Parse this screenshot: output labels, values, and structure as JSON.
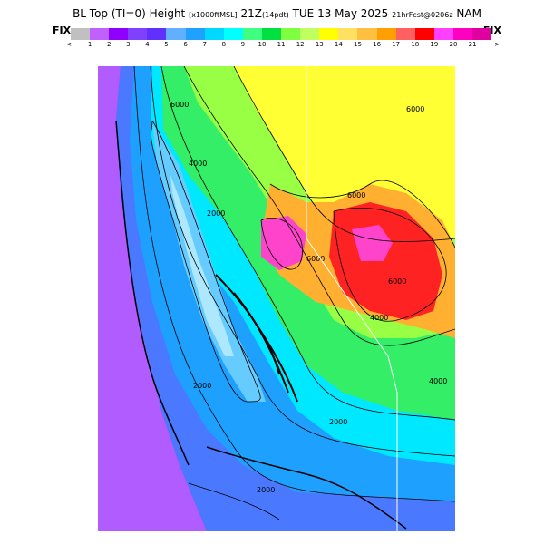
{
  "header": {
    "product": "BL Top (TI=0) Height",
    "units": "[x1000ftMSL]",
    "valid_time": "21Z",
    "local_time": "(14pdt)",
    "date": "TUE 13 May 2025",
    "forecast": "21hrFcst@0206z",
    "model": "NAM"
  },
  "legend": {
    "fix_left": "FIX",
    "fix_right": "FIX",
    "lt": "<",
    "gt": ">",
    "ticks": [
      "1",
      "2",
      "3",
      "4",
      "5",
      "6",
      "7",
      "8",
      "9",
      "10",
      "11",
      "12",
      "13",
      "14",
      "15",
      "16",
      "17",
      "18",
      "19",
      "20",
      "21"
    ],
    "colors": [
      "#c0c0c0",
      "#c060ff",
      "#9000ff",
      "#8040ff",
      "#6030ff",
      "#60b0ff",
      "#20a0ff",
      "#00d8ff",
      "#00ffff",
      "#40ff80",
      "#00e040",
      "#80ff40",
      "#c0ff60",
      "#ffff00",
      "#ffe060",
      "#ffc040",
      "#ffa000",
      "#ff6060",
      "#ff0000",
      "#ff40ff",
      "#ff00c0",
      "#e000a0"
    ]
  },
  "map": {
    "contour_labels": [
      "6000",
      "4000",
      "2000",
      "6000",
      "6000",
      "6000",
      "4000",
      "2000",
      "6000",
      "2000",
      "4000",
      "2000"
    ],
    "palette": {
      "ocean": "#9b30ff",
      "offshore": "#b05cff",
      "coast": "#4a78ff",
      "valley_edge": "#1ea0ff",
      "valley": "#66ccff",
      "valley_core": "#aee8ff",
      "foothills": "#00e8ff",
      "green": "#33ee66",
      "lime": "#99ff44",
      "yellow": "#ffff33",
      "orange": "#ffb030",
      "red": "#ff2222",
      "magenta": "#ff44cc"
    }
  }
}
